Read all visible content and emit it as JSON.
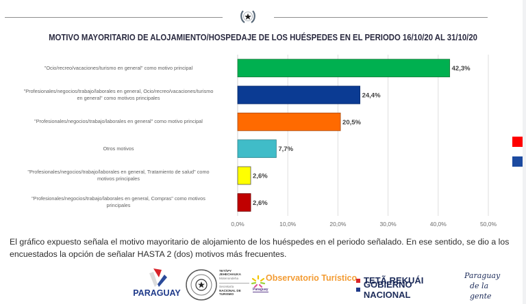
{
  "header": {
    "emblem_icon": "coat-of-arms-star-icon"
  },
  "chart_data": {
    "type": "bar",
    "orientation": "horizontal",
    "title": "MOTIVO MAYORITARIO DE ALOJAMIENTO/HOSPEDAJE DE LOS HUÉSPEDES EN EL PERIODO 16/10/20 AL 31/10/20",
    "xlabel": "",
    "ylabel": "",
    "xlim": [
      0,
      50
    ],
    "grid": true,
    "x_ticks": [
      "0,0%",
      "10,0%",
      "20,0%",
      "30,0%",
      "40,0%",
      "50,0%"
    ],
    "x_tick_values": [
      0,
      10,
      20,
      30,
      40,
      50
    ],
    "categories": [
      [
        "\"Ocio/recreo/vacaciones/turismo en general\" como motivo principal"
      ],
      [
        "\"Profesionales/negocios/trabajo/laborales en general, Ocio/recreo/vacaciones/turismo",
        "en general\" como motivos principales"
      ],
      [
        "\"Profesionales/negocios/trabajo/laborales en general\" como motivo principal"
      ],
      [
        "Otros motivos"
      ],
      [
        "\"Profesionales/negocios/trabajo/laborales en general, Tratamiento de salud\" como",
        "motivos principales"
      ],
      [
        "\"Profesionales/negocios/trabajo/laborales en general, Compras\" como motivos",
        "principales"
      ]
    ],
    "values": [
      42.3,
      24.4,
      20.5,
      7.7,
      2.6,
      2.6
    ],
    "data_labels": [
      "42,3%",
      "24,4%",
      "20,5%",
      "7,7%",
      "2,6%",
      "2,6%"
    ],
    "colors": [
      "#00b050",
      "#0b3b93",
      "#ff6a00",
      "#40bcc8",
      "#ffff00",
      "#c00000"
    ],
    "edge_colors": [
      "#1f7a3e",
      "#082a6b",
      "#a84a10",
      "#2a8088",
      "#555555",
      "#6a0000"
    ]
  },
  "description": "El gráfico expuesto señala el motivo mayoritario de alojamiento de los huéspedes en el periodo señalado. En ese sentido, se dio a los encuestados la opción de señalar HASTA 2 (dos) motivos más frecuentes.",
  "side_legend": {
    "colors": [
      "#ff0000",
      "#1c4aa0"
    ]
  },
  "footer": {
    "paraguay_brand": "PARAGUAY",
    "seal_text": "REPÚBLICA DEL PARAGUAY",
    "senatur_line1": "TETÃPY",
    "senatur_line2": "JEHECHAUKA",
    "senatur_line3": "Motenondeha",
    "senatur_line4": "Secretaría",
    "senatur_line5": "NACIONAL DE",
    "senatur_line6": "TURISMO",
    "observatorio": "Observatorio Turístico",
    "observatorio_sub": "Paraguay",
    "gov_line1": "TETÃ REKUÁI",
    "gov_line2": "GOBIERNO NACIONAL",
    "slogan_line1": "Paraguay",
    "slogan_line2": "de la gente",
    "colors": {
      "red": "#d8232a",
      "blue": "#1f3a8a",
      "orange": "#f39c34"
    }
  }
}
